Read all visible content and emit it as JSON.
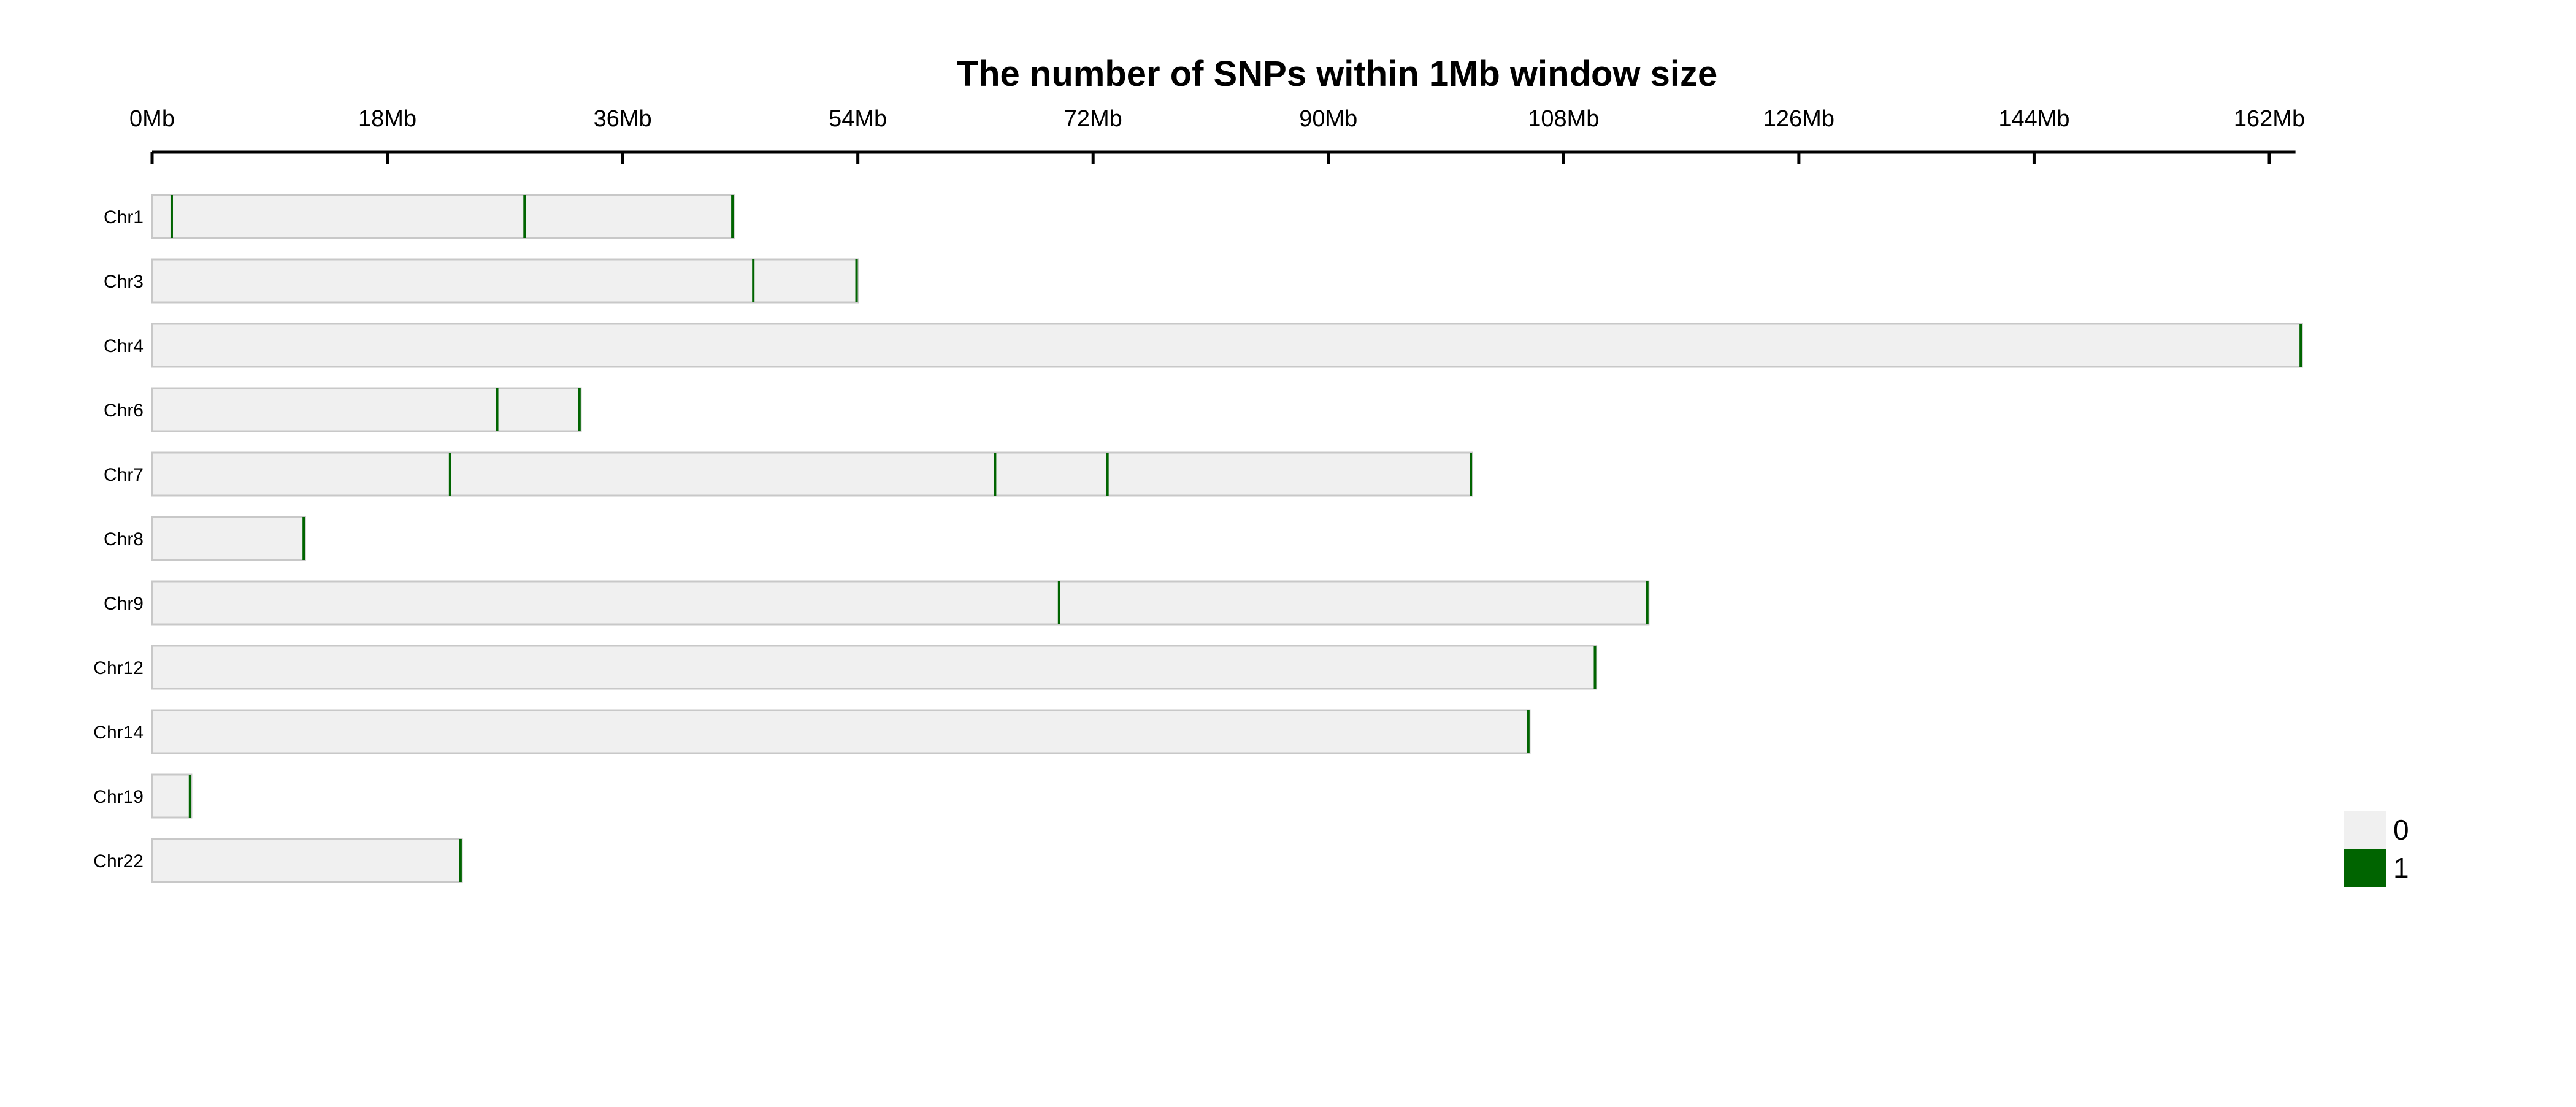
{
  "chart_data": {
    "type": "chromosome-density",
    "title": "The number of SNPs within 1Mb window size",
    "xlabel": "",
    "ylabel": "",
    "xlim": [
      0,
      164
    ],
    "xticks": [
      0,
      18,
      36,
      54,
      72,
      90,
      108,
      126,
      144,
      162
    ],
    "xtick_labels": [
      "0Mb",
      "18Mb",
      "36Mb",
      "54Mb",
      "72Mb",
      "90Mb",
      "108Mb",
      "126Mb",
      "144Mb",
      "162Mb"
    ],
    "chromosomes": [
      {
        "name": "Chr1",
        "length": 44.5,
        "snps": [
          1.5,
          28.5,
          44.4
        ]
      },
      {
        "name": "Chr3",
        "length": 54.0,
        "snps": [
          46.0,
          53.9
        ]
      },
      {
        "name": "Chr4",
        "length": 164.5,
        "snps": [
          164.4
        ]
      },
      {
        "name": "Chr6",
        "length": 32.8,
        "snps": [
          26.4,
          32.7
        ]
      },
      {
        "name": "Chr7",
        "length": 101.0,
        "snps": [
          22.8,
          64.5,
          73.1,
          100.9
        ]
      },
      {
        "name": "Chr8",
        "length": 11.7,
        "snps": [
          11.6
        ]
      },
      {
        "name": "Chr9",
        "length": 114.5,
        "snps": [
          69.4,
          114.4
        ]
      },
      {
        "name": "Chr12",
        "length": 110.5,
        "snps": [
          110.4
        ]
      },
      {
        "name": "Chr14",
        "length": 105.4,
        "snps": [
          105.3
        ]
      },
      {
        "name": "Chr19",
        "length": 3.0,
        "snps": [
          2.9
        ]
      },
      {
        "name": "Chr22",
        "length": 23.7,
        "snps": [
          23.6
        ]
      }
    ],
    "legend": {
      "placement": "right",
      "entries": [
        {
          "label": "0",
          "color": "#f0f0f0"
        },
        {
          "label": "1",
          "color": "#006400"
        }
      ]
    },
    "colors": {
      "bar_fill": "#f0f0f0",
      "bar_stroke": "#c8c8c8",
      "snp": "#006400",
      "axis": "#000000"
    }
  }
}
